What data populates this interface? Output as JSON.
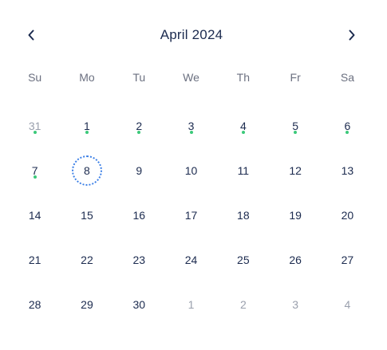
{
  "header": {
    "title": "April 2024",
    "prev_icon": "chevron-left-icon",
    "next_icon": "chevron-right-icon"
  },
  "weekdays": [
    "Su",
    "Mo",
    "Tu",
    "We",
    "Th",
    "Fr",
    "Sa"
  ],
  "colors": {
    "text": "#1c2b4f",
    "muted": "#9aa0ad",
    "weekday": "#6b7080",
    "event_dot": "#3cc97a",
    "selected_ring": "#3b7fe6"
  },
  "days": [
    {
      "label": "31",
      "other_month": true,
      "has_event": true,
      "selected": false
    },
    {
      "label": "1",
      "other_month": false,
      "has_event": true,
      "selected": false
    },
    {
      "label": "2",
      "other_month": false,
      "has_event": true,
      "selected": false
    },
    {
      "label": "3",
      "other_month": false,
      "has_event": true,
      "selected": false
    },
    {
      "label": "4",
      "other_month": false,
      "has_event": true,
      "selected": false
    },
    {
      "label": "5",
      "other_month": false,
      "has_event": true,
      "selected": false
    },
    {
      "label": "6",
      "other_month": false,
      "has_event": true,
      "selected": false
    },
    {
      "label": "7",
      "other_month": false,
      "has_event": true,
      "selected": false
    },
    {
      "label": "8",
      "other_month": false,
      "has_event": false,
      "selected": true
    },
    {
      "label": "9",
      "other_month": false,
      "has_event": false,
      "selected": false
    },
    {
      "label": "10",
      "other_month": false,
      "has_event": false,
      "selected": false
    },
    {
      "label": "11",
      "other_month": false,
      "has_event": false,
      "selected": false
    },
    {
      "label": "12",
      "other_month": false,
      "has_event": false,
      "selected": false
    },
    {
      "label": "13",
      "other_month": false,
      "has_event": false,
      "selected": false
    },
    {
      "label": "14",
      "other_month": false,
      "has_event": false,
      "selected": false
    },
    {
      "label": "15",
      "other_month": false,
      "has_event": false,
      "selected": false
    },
    {
      "label": "16",
      "other_month": false,
      "has_event": false,
      "selected": false
    },
    {
      "label": "17",
      "other_month": false,
      "has_event": false,
      "selected": false
    },
    {
      "label": "18",
      "other_month": false,
      "has_event": false,
      "selected": false
    },
    {
      "label": "19",
      "other_month": false,
      "has_event": false,
      "selected": false
    },
    {
      "label": "20",
      "other_month": false,
      "has_event": false,
      "selected": false
    },
    {
      "label": "21",
      "other_month": false,
      "has_event": false,
      "selected": false
    },
    {
      "label": "22",
      "other_month": false,
      "has_event": false,
      "selected": false
    },
    {
      "label": "23",
      "other_month": false,
      "has_event": false,
      "selected": false
    },
    {
      "label": "24",
      "other_month": false,
      "has_event": false,
      "selected": false
    },
    {
      "label": "25",
      "other_month": false,
      "has_event": false,
      "selected": false
    },
    {
      "label": "26",
      "other_month": false,
      "has_event": false,
      "selected": false
    },
    {
      "label": "27",
      "other_month": false,
      "has_event": false,
      "selected": false
    },
    {
      "label": "28",
      "other_month": false,
      "has_event": false,
      "selected": false
    },
    {
      "label": "29",
      "other_month": false,
      "has_event": false,
      "selected": false
    },
    {
      "label": "30",
      "other_month": false,
      "has_event": false,
      "selected": false
    },
    {
      "label": "1",
      "other_month": true,
      "has_event": false,
      "selected": false
    },
    {
      "label": "2",
      "other_month": true,
      "has_event": false,
      "selected": false
    },
    {
      "label": "3",
      "other_month": true,
      "has_event": false,
      "selected": false
    },
    {
      "label": "4",
      "other_month": true,
      "has_event": false,
      "selected": false
    }
  ]
}
